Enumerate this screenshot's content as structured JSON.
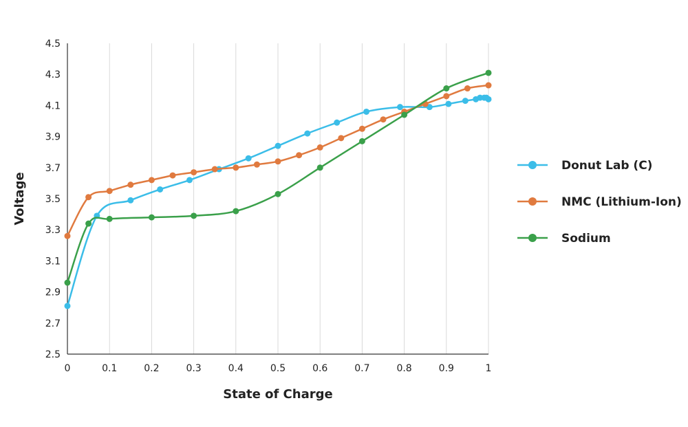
{
  "chart_data": {
    "type": "line",
    "xlabel": "State of Charge",
    "ylabel": "Voltage",
    "xlim": [
      0,
      1
    ],
    "ylim": [
      2.5,
      4.5
    ],
    "x_ticks": [
      "0",
      "0.1",
      "0.2",
      "0.3",
      "0.4",
      "0.5",
      "0.6",
      "0.7",
      "0.8",
      "0.9",
      "1"
    ],
    "y_ticks": [
      "2.5",
      "2.7",
      "2.9",
      "3.1",
      "3.3",
      "3.5",
      "3.7",
      "3.9",
      "4.1",
      "4.3",
      "4.5"
    ],
    "grid": "vertical",
    "legend_position": "right",
    "series": [
      {
        "name": "Donut Lab (C)",
        "color": "#3bbde8",
        "points": [
          [
            0,
            2.81
          ],
          [
            0.07,
            3.39
          ],
          [
            0.15,
            3.49
          ],
          [
            0.22,
            3.56
          ],
          [
            0.29,
            3.62
          ],
          [
            0.36,
            3.69
          ],
          [
            0.43,
            3.76
          ],
          [
            0.5,
            3.84
          ],
          [
            0.57,
            3.92
          ],
          [
            0.64,
            3.99
          ],
          [
            0.71,
            4.06
          ],
          [
            0.79,
            4.09
          ],
          [
            0.86,
            4.09
          ],
          [
            0.905,
            4.11
          ],
          [
            0.945,
            4.13
          ],
          [
            0.97,
            4.14
          ],
          [
            0.98,
            4.15
          ],
          [
            0.99,
            4.15
          ],
          [
            0.995,
            4.15
          ],
          [
            1.0,
            4.14
          ]
        ]
      },
      {
        "name": "NMC (Lithium-Ion)",
        "color": "#e07a3f",
        "points": [
          [
            0,
            3.26
          ],
          [
            0.05,
            3.51
          ],
          [
            0.1,
            3.55
          ],
          [
            0.15,
            3.59
          ],
          [
            0.2,
            3.62
          ],
          [
            0.25,
            3.65
          ],
          [
            0.3,
            3.67
          ],
          [
            0.35,
            3.69
          ],
          [
            0.4,
            3.7
          ],
          [
            0.45,
            3.72
          ],
          [
            0.5,
            3.74
          ],
          [
            0.55,
            3.78
          ],
          [
            0.6,
            3.83
          ],
          [
            0.65,
            3.89
          ],
          [
            0.7,
            3.95
          ],
          [
            0.75,
            4.01
          ],
          [
            0.8,
            4.06
          ],
          [
            0.85,
            4.11
          ],
          [
            0.9,
            4.16
          ],
          [
            0.95,
            4.21
          ],
          [
            1.0,
            4.23
          ]
        ]
      },
      {
        "name": "Sodium",
        "color": "#3aa04a",
        "points": [
          [
            0,
            2.96
          ],
          [
            0.05,
            3.34
          ],
          [
            0.1,
            3.37
          ],
          [
            0.2,
            3.38
          ],
          [
            0.3,
            3.39
          ],
          [
            0.4,
            3.42
          ],
          [
            0.5,
            3.53
          ],
          [
            0.6,
            3.7
          ],
          [
            0.7,
            3.87
          ],
          [
            0.8,
            4.04
          ],
          [
            0.9,
            4.21
          ],
          [
            1.0,
            4.31
          ]
        ]
      }
    ]
  }
}
